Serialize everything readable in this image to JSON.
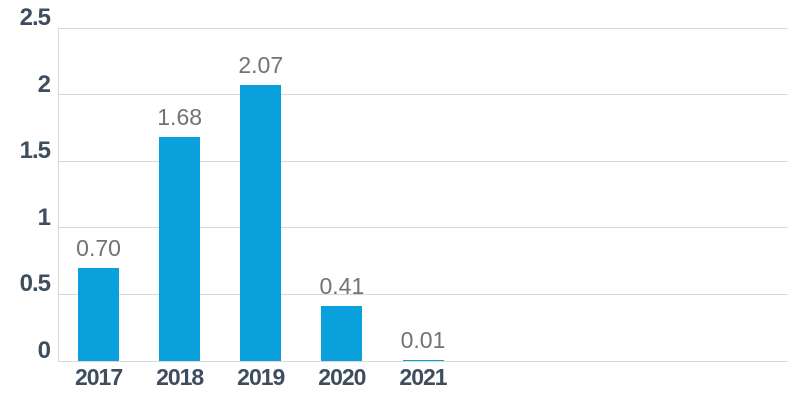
{
  "chart_data": {
    "type": "bar",
    "title": "",
    "xlabel": "",
    "ylabel": "",
    "categories": [
      "2017",
      "2018",
      "2019",
      "2020",
      "2021"
    ],
    "values": [
      0.7,
      1.68,
      2.07,
      0.41,
      0.01
    ],
    "data_labels": [
      "0.70",
      "1.68",
      "2.07",
      "0.41",
      "0.01"
    ],
    "ylim": [
      0,
      2.5
    ],
    "ytick_step": 0.5,
    "ytick_labels": [
      "0",
      "0.5",
      "1",
      "1.5",
      "2",
      "2.5"
    ],
    "grid": true,
    "legend": false,
    "visible_category_slots": 9,
    "colors": {
      "bar": "#0AA0DC",
      "axis_label": "#3E4E5E",
      "data_label": "#737373",
      "gridline": "#D8D8D8",
      "background": "#FFFFFF"
    }
  }
}
